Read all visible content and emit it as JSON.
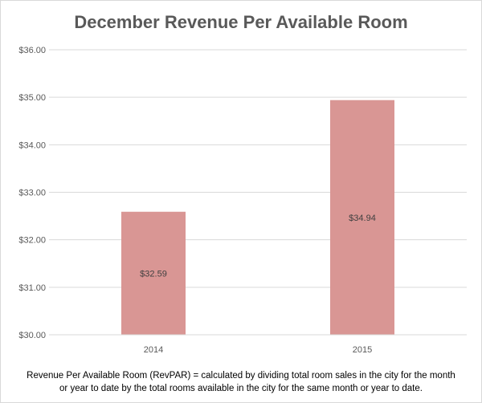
{
  "chart_data": {
    "type": "bar",
    "title": "December Revenue Per Available Room",
    "categories": [
      "2014",
      "2015"
    ],
    "values": [
      32.59,
      34.94
    ],
    "data_labels": [
      "$32.59",
      "$34.94"
    ],
    "ylim": [
      30,
      36
    ],
    "y_ticks": [
      30,
      31,
      32,
      33,
      34,
      35,
      36
    ],
    "y_tick_labels": [
      "$30.00",
      "$31.00",
      "$32.00",
      "$33.00",
      "$34.00",
      "$35.00",
      "$36.00"
    ],
    "grid": true,
    "legend": "none",
    "bar_color": "#d99694"
  },
  "footnote": {
    "line1": "Revenue Per Available Room (RevPAR) = calculated by dividing total room sales in the city for the month",
    "line2": "or year to date by the total rooms available in the city for the same month or year to date."
  }
}
